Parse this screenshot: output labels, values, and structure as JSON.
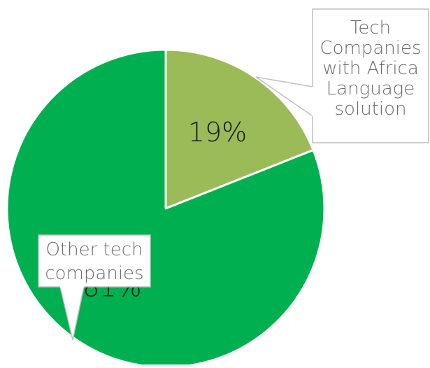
{
  "chart_data": {
    "type": "pie",
    "title": "",
    "slices": [
      {
        "label": "Tech Companies with Africa Language solution",
        "label_lines": [
          "Tech",
          "Companies",
          "with Africa",
          "Language",
          "solution"
        ],
        "value": 19,
        "display": "19%",
        "color": "#9bbb59"
      },
      {
        "label": "Other tech companies",
        "label_lines": [
          "Other tech",
          "companies"
        ],
        "value": 81,
        "display": "81%",
        "color": "#00b050"
      }
    ],
    "start_angle_deg": 0,
    "direction": "clockwise",
    "slice_border_color": "#ffffff",
    "labels": "callouts",
    "legend": "none"
  }
}
